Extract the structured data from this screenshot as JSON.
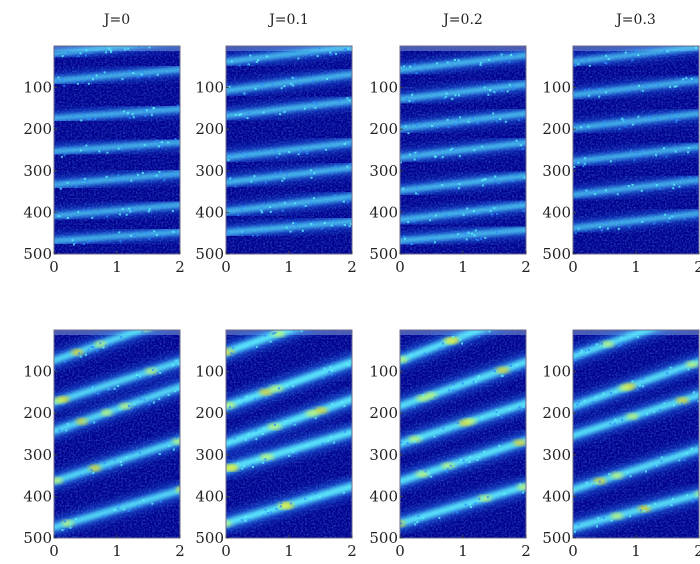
{
  "chart_data": {
    "type": "heatmap",
    "layout": {
      "rows": 2,
      "cols": 4
    },
    "column_titles": [
      "J=0",
      "J=0.1",
      "J=0.2",
      "J=0.3"
    ],
    "xlim": [
      0,
      2
    ],
    "ylim": [
      0,
      500
    ],
    "y_inverted": true,
    "x_ticks": [
      0,
      1,
      2
    ],
    "y_ticks": [
      100,
      200,
      300,
      400,
      500
    ],
    "colormap": [
      "#00008f",
      "#0b3bd6",
      "#2b8cff",
      "#5ff2ff",
      "#d8ff5a",
      "#ffd000"
    ],
    "panels": [
      {
        "row": 0,
        "col": 0,
        "title": "J=0",
        "intensity": 0.55,
        "stripes": [
          {
            "y": 20,
            "slope": -35
          },
          {
            "y": 85,
            "slope": -30
          },
          {
            "y": 175,
            "slope": -25
          },
          {
            "y": 255,
            "slope": -25
          },
          {
            "y": 335,
            "slope": -30
          },
          {
            "y": 410,
            "slope": -30
          },
          {
            "y": 470,
            "slope": -25
          }
        ]
      },
      {
        "row": 0,
        "col": 1,
        "title": "J=0.1",
        "intensity": 0.6,
        "stripes": [
          {
            "y": 40,
            "slope": -40
          },
          {
            "y": 110,
            "slope": -45
          },
          {
            "y": 170,
            "slope": -40
          },
          {
            "y": 270,
            "slope": -40
          },
          {
            "y": 330,
            "slope": -40
          },
          {
            "y": 400,
            "slope": -40
          },
          {
            "y": 450,
            "slope": -30
          }
        ]
      },
      {
        "row": 0,
        "col": 2,
        "title": "J=0.2",
        "intensity": 0.6,
        "stripes": [
          {
            "y": 60,
            "slope": -40
          },
          {
            "y": 130,
            "slope": -40
          },
          {
            "y": 200,
            "slope": -40
          },
          {
            "y": 270,
            "slope": -40
          },
          {
            "y": 350,
            "slope": -40
          },
          {
            "y": 420,
            "slope": -40
          },
          {
            "y": 470,
            "slope": -30
          }
        ]
      },
      {
        "row": 0,
        "col": 3,
        "title": "J=0.3",
        "intensity": 0.55,
        "stripes": [
          {
            "y": 40,
            "slope": -40
          },
          {
            "y": 120,
            "slope": -40
          },
          {
            "y": 200,
            "slope": -40
          },
          {
            "y": 280,
            "slope": -40
          },
          {
            "y": 360,
            "slope": -40
          },
          {
            "y": 440,
            "slope": -40
          }
        ]
      },
      {
        "row": 1,
        "col": 0,
        "title": "",
        "intensity": 0.85,
        "stripes": [
          {
            "y": 80,
            "slope": -120
          },
          {
            "y": 180,
            "slope": -110
          },
          {
            "y": 250,
            "slope": -120
          },
          {
            "y": 370,
            "slope": -110
          },
          {
            "y": 480,
            "slope": -100
          }
        ]
      },
      {
        "row": 1,
        "col": 1,
        "title": "",
        "intensity": 1.0,
        "stripes": [
          {
            "y": 60,
            "slope": -120
          },
          {
            "y": 190,
            "slope": -120
          },
          {
            "y": 280,
            "slope": -120
          },
          {
            "y": 340,
            "slope": -100
          },
          {
            "y": 470,
            "slope": -100
          }
        ]
      },
      {
        "row": 1,
        "col": 2,
        "title": "",
        "intensity": 0.95,
        "stripes": [
          {
            "y": 80,
            "slope": -130
          },
          {
            "y": 190,
            "slope": -120
          },
          {
            "y": 280,
            "slope": -110
          },
          {
            "y": 370,
            "slope": -110
          },
          {
            "y": 470,
            "slope": -100
          }
        ]
      },
      {
        "row": 1,
        "col": 3,
        "title": "",
        "intensity": 0.9,
        "stripes": [
          {
            "y": 70,
            "slope": -120
          },
          {
            "y": 190,
            "slope": -120
          },
          {
            "y": 260,
            "slope": -110
          },
          {
            "y": 390,
            "slope": -110
          },
          {
            "y": 480,
            "slope": -90
          }
        ]
      }
    ]
  }
}
